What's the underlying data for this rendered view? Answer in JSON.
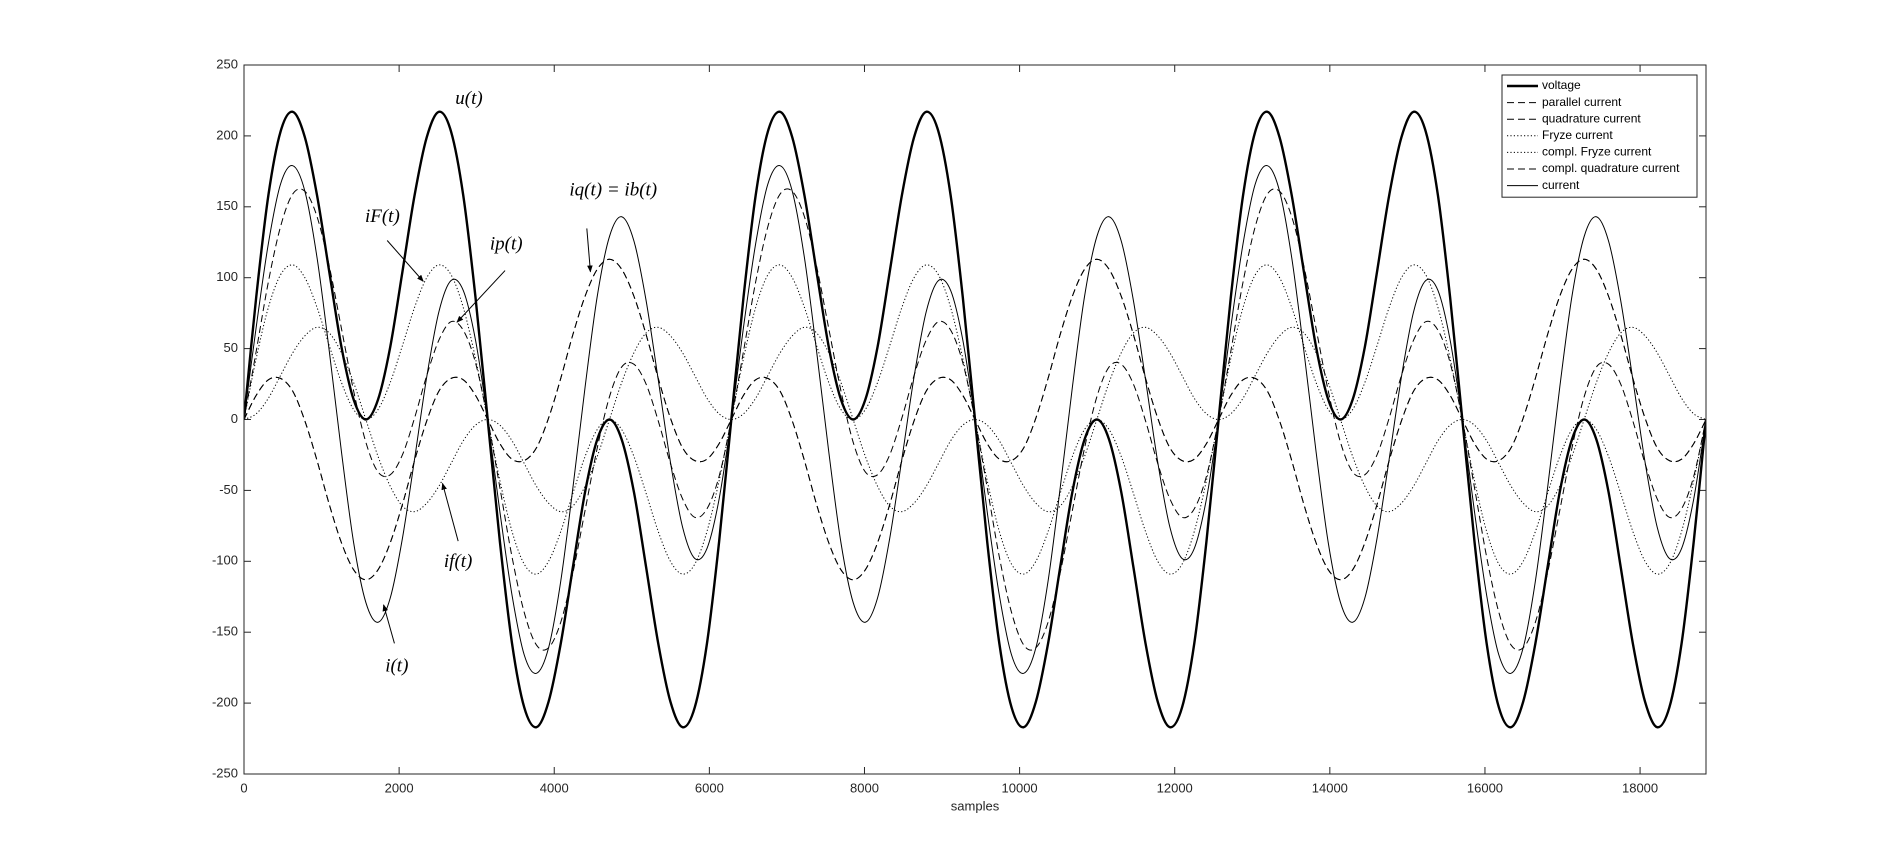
{
  "chart_data": {
    "type": "line",
    "xlabel": "samples",
    "xlim": [
      0,
      18850
    ],
    "xticks": [
      0,
      2000,
      4000,
      6000,
      8000,
      10000,
      12000,
      14000,
      16000,
      18000
    ],
    "ylim": [
      -250,
      250
    ],
    "yticks": [
      -250,
      -200,
      -150,
      -100,
      -50,
      0,
      50,
      100,
      150,
      200,
      250
    ],
    "grid": false,
    "legend": "upper right",
    "x": [
      0,
      157,
      314,
      471,
      628,
      785,
      942,
      1100,
      1257,
      1414,
      1571,
      1728,
      1885,
      2042,
      2199,
      2356,
      2513,
      2670,
      2827,
      2985,
      3142,
      3299,
      3456,
      3613,
      3770,
      3927,
      4084,
      4241,
      4398,
      4555,
      4712,
      4869,
      5027,
      5184,
      5341,
      5498,
      5655,
      5812,
      5969,
      6126,
      6283,
      6440,
      6597,
      6754,
      6912,
      7069,
      7226,
      7383,
      7540,
      7697,
      7854,
      8011,
      8168,
      8325,
      8482,
      8639,
      8796,
      8954,
      9111,
      9268,
      9425,
      9582,
      9739,
      9896,
      10053,
      10210,
      10367,
      10524,
      10681,
      10838,
      10996,
      11153,
      11310,
      11467,
      11624,
      11781,
      11938,
      12095,
      12252,
      12409,
      12566,
      12723,
      12881,
      13038,
      13195,
      13352,
      13509,
      13666,
      13823,
      13980,
      14137,
      14294,
      14451,
      14608,
      14765,
      14923,
      15080,
      15237,
      15394,
      15551,
      15708,
      15865,
      16022,
      16179,
      16336,
      16493,
      16650,
      16808,
      16965,
      17122,
      17279,
      17436,
      17593,
      17750,
      17907,
      18064,
      18221,
      18378,
      18535,
      18692,
      18850
    ],
    "series": [
      {
        "name": "voltage",
        "color": "#000000",
        "line_style": "solid",
        "line_width": 2.4,
        "values": [
          0,
          86,
          158,
          203,
          217,
          199,
          158,
          104,
          51,
          14,
          0,
          14,
          51,
          104,
          158,
          199,
          217,
          203,
          158,
          86,
          0,
          -86,
          -158,
          -203,
          -217,
          -199,
          -158,
          -104,
          -51,
          -14,
          0,
          -14,
          -51,
          -104,
          -158,
          -199,
          -217,
          -203,
          -158,
          -86,
          0,
          86,
          158,
          203,
          217,
          199,
          158,
          104,
          51,
          14,
          0,
          14,
          51,
          104,
          158,
          199,
          217,
          203,
          158,
          86,
          0,
          -86,
          -158,
          -203,
          -217,
          -199,
          -158,
          -104,
          -51,
          -14,
          0,
          -14,
          -51,
          -104,
          -158,
          -199,
          -217,
          -203,
          -158,
          -86,
          0,
          86,
          158,
          203,
          217,
          199,
          158,
          104,
          51,
          14,
          0,
          14,
          51,
          104,
          158,
          199,
          217,
          203,
          158,
          86,
          0,
          -86,
          -158,
          -203,
          -217,
          -199,
          -158,
          -104,
          -51,
          -14,
          0,
          -14,
          -51,
          -104,
          -158,
          -199,
          -217,
          -203,
          -158,
          -86,
          0
        ]
      },
      {
        "name": "parallel current",
        "color": "#000000",
        "line_style": "dashed",
        "line_width": 1,
        "values": [
          0,
          48,
          97,
          136,
          159,
          161,
          143,
          108,
          64,
          20,
          -16,
          -37,
          -39,
          -25,
          1,
          31,
          56,
          69,
          63,
          40,
          0,
          -48,
          -97,
          -136,
          -159,
          -161,
          -143,
          -108,
          -64,
          -20,
          16,
          37,
          39,
          25,
          -1,
          -31,
          -56,
          -69,
          -63,
          -40,
          0,
          48,
          97,
          136,
          159,
          161,
          143,
          108,
          64,
          20,
          -16,
          -37,
          -39,
          -25,
          1,
          31,
          56,
          69,
          63,
          40,
          0,
          -48,
          -97,
          -136,
          -159,
          -161,
          -143,
          -108,
          -64,
          -20,
          16,
          37,
          39,
          25,
          -1,
          -31,
          -56,
          -69,
          -63,
          -40,
          0,
          48,
          97,
          136,
          159,
          161,
          143,
          108,
          64,
          20,
          -16,
          -37,
          -39,
          -25,
          1,
          31,
          56,
          69,
          63,
          40,
          0,
          -48,
          -97,
          -136,
          -159,
          -161,
          -143,
          -108,
          -64,
          -20,
          16,
          37,
          39,
          25,
          -1,
          -31,
          -56,
          -69,
          -63,
          -40,
          0
        ]
      },
      {
        "name": "quadrature current",
        "color": "#000000",
        "line_style": "dashed",
        "line_width": 1,
        "values": [
          0,
          17,
          28,
          29,
          20,
          -1,
          -29,
          -60,
          -87,
          -106,
          -113,
          -106,
          -87,
          -60,
          -29,
          -1,
          20,
          29,
          28,
          17,
          0,
          -17,
          -28,
          -29,
          -20,
          1,
          29,
          60,
          87,
          106,
          113,
          106,
          87,
          60,
          29,
          1,
          -20,
          -29,
          -28,
          -17,
          0,
          17,
          28,
          29,
          20,
          -1,
          -29,
          -60,
          -87,
          -106,
          -113,
          -106,
          -87,
          -60,
          -29,
          -1,
          20,
          29,
          28,
          17,
          0,
          -17,
          -28,
          -29,
          -20,
          1,
          29,
          60,
          87,
          106,
          113,
          106,
          87,
          60,
          29,
          1,
          -20,
          -29,
          -28,
          -17,
          0,
          17,
          28,
          29,
          20,
          -1,
          -29,
          -60,
          -87,
          -106,
          -113,
          -106,
          -87,
          -60,
          -29,
          -1,
          20,
          29,
          28,
          17,
          0,
          -17,
          -28,
          -29,
          -20,
          1,
          29,
          60,
          87,
          106,
          113,
          106,
          87,
          60,
          29,
          1,
          -20,
          -29,
          -28,
          -17,
          0
        ]
      },
      {
        "name": "Fryze current",
        "color": "#000000",
        "line_style": "dotted",
        "line_width": 1,
        "values": [
          0,
          43,
          79,
          102,
          109,
          100,
          79,
          52,
          26,
          7,
          0,
          7,
          26,
          52,
          79,
          100,
          109,
          102,
          79,
          43,
          0,
          -43,
          -79,
          -102,
          -109,
          -100,
          -79,
          -52,
          -26,
          -7,
          0,
          -7,
          -26,
          -52,
          -79,
          -100,
          -109,
          -102,
          -79,
          -43,
          0,
          43,
          79,
          102,
          109,
          100,
          79,
          52,
          26,
          7,
          0,
          7,
          26,
          52,
          79,
          100,
          109,
          102,
          79,
          43,
          0,
          -43,
          -79,
          -102,
          -109,
          -100,
          -79,
          -52,
          -26,
          -7,
          0,
          -7,
          -26,
          -52,
          -79,
          -100,
          -109,
          -102,
          -79,
          -43,
          0,
          43,
          79,
          102,
          109,
          100,
          79,
          52,
          26,
          7,
          0,
          7,
          26,
          52,
          79,
          100,
          109,
          102,
          79,
          43,
          0,
          -43,
          -79,
          -102,
          -109,
          -100,
          -79,
          -52,
          -26,
          -7,
          0,
          -7,
          -26,
          -52,
          -79,
          -100,
          -109,
          -102,
          -79,
          -43,
          0
        ]
      },
      {
        "name": "compl. Fryze current",
        "color": "#000000",
        "line_style": "dotted",
        "line_width": 1,
        "values": [
          0,
          4,
          15,
          31,
          47,
          59,
          65,
          61,
          47,
          26,
          0,
          -26,
          -47,
          -61,
          -65,
          -59,
          -47,
          -31,
          -15,
          -4,
          0,
          -4,
          -15,
          -31,
          -47,
          -59,
          -65,
          -61,
          -47,
          -26,
          0,
          26,
          47,
          61,
          65,
          59,
          47,
          31,
          15,
          4,
          0,
          4,
          15,
          31,
          47,
          59,
          65,
          61,
          47,
          26,
          0,
          -26,
          -47,
          -61,
          -65,
          -59,
          -47,
          -31,
          -15,
          -4,
          0,
          -4,
          -15,
          -31,
          -47,
          -59,
          -65,
          -61,
          -47,
          -26,
          0,
          26,
          47,
          61,
          65,
          59,
          47,
          31,
          15,
          4,
          0,
          4,
          15,
          31,
          47,
          59,
          65,
          61,
          47,
          26,
          0,
          -26,
          -47,
          -61,
          -65,
          -59,
          -47,
          -31,
          -15,
          -4,
          0,
          -4,
          -15,
          -31,
          -47,
          -59,
          -65,
          -61,
          -47,
          -26,
          0,
          26,
          47,
          61,
          65,
          59,
          47,
          31,
          15,
          4,
          0
        ]
      },
      {
        "name": "compl. quadrature current",
        "color": "#000000",
        "line_style": "dashed",
        "line_width": 1,
        "values": [
          0,
          17,
          28,
          29,
          20,
          -1,
          -29,
          -60,
          -87,
          -106,
          -113,
          -106,
          -87,
          -60,
          -29,
          -1,
          20,
          29,
          28,
          17,
          0,
          -17,
          -28,
          -29,
          -20,
          1,
          29,
          60,
          87,
          106,
          113,
          106,
          87,
          60,
          29,
          1,
          -20,
          -29,
          -28,
          -17,
          0,
          17,
          28,
          29,
          20,
          -1,
          -29,
          -60,
          -87,
          -106,
          -113,
          -106,
          -87,
          -60,
          -29,
          -1,
          20,
          29,
          28,
          17,
          0,
          -17,
          -28,
          -29,
          -20,
          1,
          29,
          60,
          87,
          106,
          113,
          106,
          87,
          60,
          29,
          1,
          -20,
          -29,
          -28,
          -17,
          0,
          17,
          28,
          29,
          20,
          -1,
          -29,
          -60,
          -87,
          -106,
          -113,
          -106,
          -87,
          -60,
          -29,
          -1,
          20,
          29,
          28,
          17,
          0,
          -17,
          -28,
          -29,
          -20,
          1,
          29,
          60,
          87,
          106,
          113,
          106,
          87,
          60,
          29,
          1,
          -20,
          -29,
          -28,
          -17,
          0
        ]
      },
      {
        "name": "current",
        "color": "#000000",
        "line_style": "solid",
        "line_width": 1,
        "values": [
          0,
          65,
          124,
          166,
          179,
          161,
          114,
          48,
          -23,
          -87,
          -129,
          -143,
          -126,
          -84,
          -28,
          30,
          76,
          98,
          91,
          56,
          0,
          -65,
          -124,
          -166,
          -179,
          -161,
          -114,
          -48,
          23,
          87,
          129,
          143,
          126,
          84,
          28,
          -30,
          -76,
          -98,
          -91,
          -56,
          0,
          65,
          124,
          166,
          179,
          161,
          114,
          48,
          -23,
          -87,
          -129,
          -143,
          -126,
          -84,
          -28,
          30,
          76,
          98,
          91,
          56,
          0,
          -65,
          -124,
          -166,
          -179,
          -161,
          -114,
          -48,
          23,
          87,
          129,
          143,
          126,
          84,
          28,
          -30,
          -76,
          -98,
          -91,
          -56,
          0,
          65,
          124,
          166,
          179,
          161,
          114,
          48,
          -23,
          -87,
          -129,
          -143,
          -126,
          -84,
          -28,
          30,
          76,
          98,
          91,
          56,
          0,
          -65,
          -124,
          -166,
          -179,
          -161,
          -114,
          -48,
          23,
          87,
          129,
          143,
          126,
          84,
          28,
          -30,
          -76,
          -98,
          -91,
          -56,
          0
        ]
      }
    ],
    "annotations": [
      "u(t)",
      "iF(t)",
      "ip(t)",
      "iq(t) = ib(t)",
      "if(t)",
      "i(t)"
    ]
  }
}
